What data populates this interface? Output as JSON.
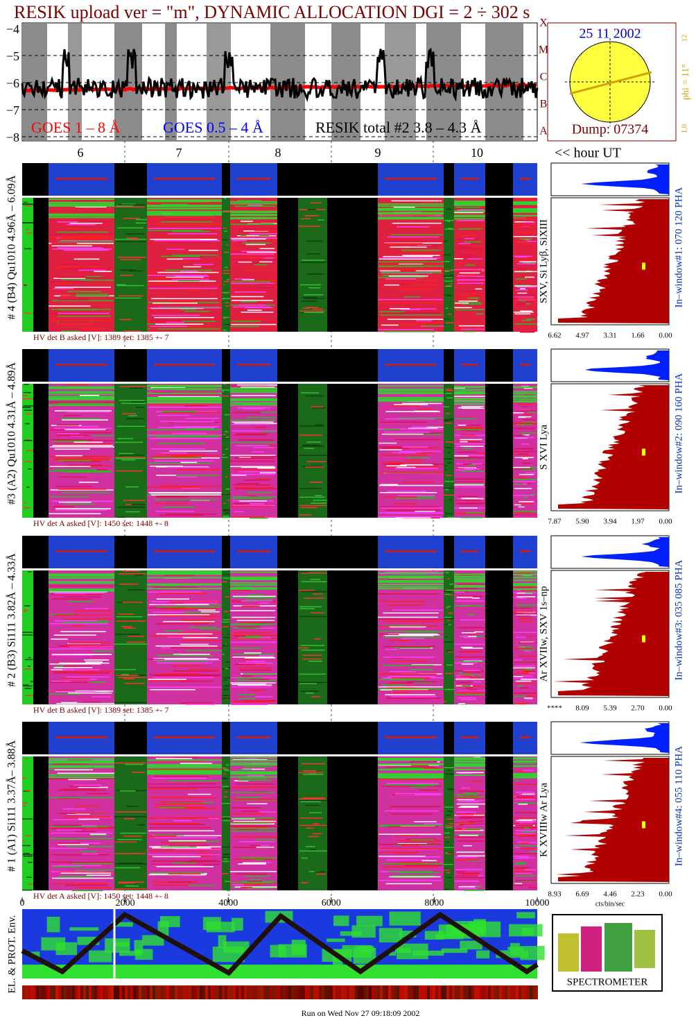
{
  "header": {
    "title": "RESIK upload ver = \"m\", DYNAMIC ALLOCATION  DGI =   2 ÷ 302 s"
  },
  "goes": {
    "yticks": [
      "−4",
      "−5",
      "−6",
      "−7",
      "−8"
    ],
    "classes": [
      "X",
      "M",
      "C",
      "B",
      "A"
    ],
    "legend": [
      "GOES 1 – 8 Å",
      "GOES 0.5 – 4 Å",
      "RESIK total #2  3.8 – 4.3 Å"
    ],
    "hours": [
      "6",
      "7",
      "8",
      "9",
      "10"
    ],
    "hour_label": "<< hour UT"
  },
  "sun": {
    "date": "25 11 2002",
    "dump": "Dump: 07374",
    "phi": "phi = 11°",
    "top": "12",
    "bottom": "L0"
  },
  "panels": [
    {
      "label": "# 4 (B4) Qu1010 4.96Å – 6.09Å",
      "hv": "HV det B asked [V]:  1389 set:  1385 +-    7",
      "lines": "SXV, Si Lyβ, SiXIII",
      "window": "In–window#1:  070 120 PHA",
      "ticks": [
        "6.62",
        "4.97",
        "3.31",
        "1.66",
        "0.00"
      ]
    },
    {
      "label": "#3 (A2) Qu1010  4.31Å – 4.89Å",
      "hv": "HV det A asked [V]:  1450 set:  1448 +-    8",
      "lines": "S XVI Lya",
      "window": "In–window#2:  090 160 PHA",
      "ticks": [
        "7.87",
        "5.90",
        "3.94",
        "1.97",
        "0.00"
      ]
    },
    {
      "label": "# 2 (B3) Si111  3.82Å – 4.33Å",
      "hv": "HV det B asked [V]:  1389 set:  1385 +-    7",
      "lines": "Ar XVIIw,  SXV  1s–np",
      "window": "In–window#3:  035 085 PHA",
      "ticks": [
        "****",
        "8.09",
        "5.39",
        "2.70",
        "0.00"
      ]
    },
    {
      "label": "# 1 (A1) Si111  3.37Å– 3.88Å",
      "hv": "HV det A asked [V]:  1450 set:  1448 +-    8",
      "lines": "K XVIIIw  Ar Lya",
      "window": "In–window#4:  055 110 PHA",
      "ticks": [
        "8.93",
        "6.69",
        "4.46",
        "2.23",
        "0.00"
      ],
      "unit": "cts/bin/sec"
    }
  ],
  "xaxis": {
    "ticks": [
      "0",
      "2000",
      "4000",
      "6000",
      "8000",
      "10000"
    ]
  },
  "env": {
    "label": "EL. & PROT. Env."
  },
  "logo": {
    "caption": "SPECTROMETER"
  },
  "footer": {
    "run": "Run on Wed Nov 27 09:18:09 2002"
  }
}
